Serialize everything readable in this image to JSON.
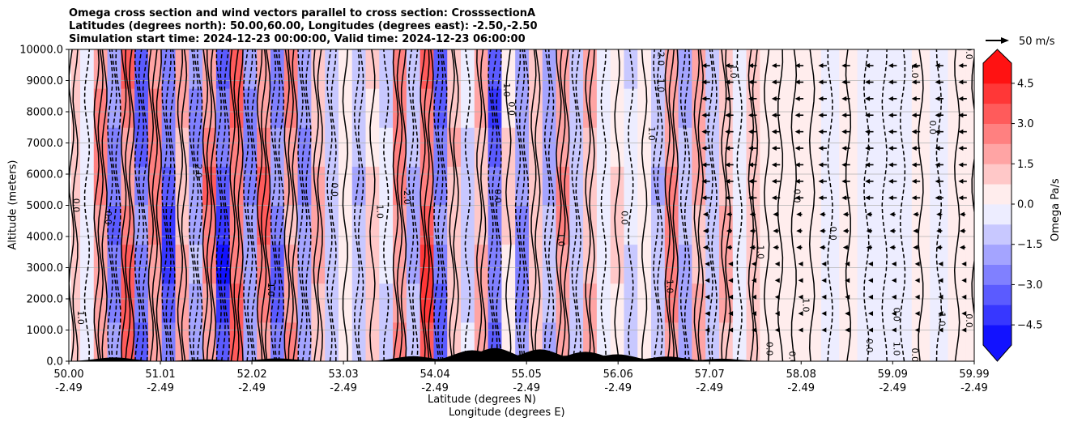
{
  "chart_data": {
    "type": "contour-cross-section",
    "title_lines": [
      "Omega cross section and wind vectors parallel to cross section: CrosssectionA",
      "Latitudes (degrees north): 50.00,60.00, Longitudes (degrees east): -2.50,-2.50",
      "Simulation start time: 2024-12-23 00:00:00, Valid time: 2024-12-23 06:00:00"
    ],
    "ylabel": "Altitude (meters)",
    "xlabel_lat": "Latitude (degrees N)",
    "xlabel_lon": "Longitude (degrees E)",
    "ylim": [
      0,
      10000
    ],
    "xlim": [
      50.0,
      59.99
    ],
    "y_ticks": [
      "0.0",
      "1000.0",
      "2000.0",
      "3000.0",
      "4000.0",
      "5000.0",
      "6000.0",
      "7000.0",
      "8000.0",
      "9000.0",
      "10000.0"
    ],
    "y_tick_values": [
      0,
      1000,
      2000,
      3000,
      4000,
      5000,
      6000,
      7000,
      8000,
      9000,
      10000
    ],
    "x_ticks_lat": [
      "50.00",
      "51.01",
      "52.02",
      "53.03",
      "54.04",
      "55.05",
      "56.06",
      "57.07",
      "58.08",
      "59.09",
      "59.99"
    ],
    "x_ticks_lon": [
      "-2.49",
      "-2.49",
      "-2.49",
      "-2.49",
      "-2.49",
      "-2.49",
      "-2.49",
      "-2.49",
      "-2.49",
      "-2.49",
      "-2.49"
    ],
    "x_tick_values": [
      50.0,
      51.01,
      52.02,
      53.03,
      54.04,
      55.05,
      56.06,
      57.07,
      58.08,
      59.09,
      59.99
    ],
    "colorbar": {
      "label": "Omega Pa/s",
      "range": [
        -5.25,
        5.25
      ],
      "tick_labels": [
        "4.5",
        "3.0",
        "1.5",
        "0.0",
        "−1.5",
        "−3.0",
        "−4.5"
      ],
      "tick_values": [
        4.5,
        3.0,
        1.5,
        0.0,
        -1.5,
        -3.0,
        -4.5
      ],
      "levels": [
        -5.25,
        -4.5,
        -3.75,
        -3.0,
        -2.25,
        -1.5,
        -0.75,
        0.0,
        0.75,
        1.5,
        2.25,
        3.0,
        3.75,
        4.5,
        5.25
      ],
      "cmap": "bwr",
      "extend": "both"
    },
    "quiver_key_label": "50 m/s",
    "quiver_key_value": 50,
    "omega_bands": [
      {
        "lat": 50.05,
        "omega": 1.2
      },
      {
        "lat": 50.2,
        "omega": -0.6
      },
      {
        "lat": 50.35,
        "omega": 2.4
      },
      {
        "lat": 50.5,
        "omega": -2.8
      },
      {
        "lat": 50.65,
        "omega": 3.2
      },
      {
        "lat": 50.8,
        "omega": -3.4
      },
      {
        "lat": 50.95,
        "omega": 2.6
      },
      {
        "lat": 51.1,
        "omega": -3.8
      },
      {
        "lat": 51.25,
        "omega": 1.8
      },
      {
        "lat": 51.4,
        "omega": -2.2
      },
      {
        "lat": 51.55,
        "omega": 2.8
      },
      {
        "lat": 51.7,
        "omega": -4.2
      },
      {
        "lat": 51.85,
        "omega": 3.4
      },
      {
        "lat": 52.0,
        "omega": -2.6
      },
      {
        "lat": 52.15,
        "omega": 3.0
      },
      {
        "lat": 52.3,
        "omega": -3.0
      },
      {
        "lat": 52.45,
        "omega": 2.2
      },
      {
        "lat": 52.6,
        "omega": -2.4
      },
      {
        "lat": 52.75,
        "omega": 1.6
      },
      {
        "lat": 52.9,
        "omega": -1.2
      },
      {
        "lat": 53.05,
        "omega": 0.6
      },
      {
        "lat": 53.2,
        "omega": -1.4
      },
      {
        "lat": 53.35,
        "omega": 1.0
      },
      {
        "lat": 53.5,
        "omega": -0.8
      },
      {
        "lat": 53.65,
        "omega": 2.6
      },
      {
        "lat": 53.8,
        "omega": -1.6
      },
      {
        "lat": 53.95,
        "omega": 3.6
      },
      {
        "lat": 54.1,
        "omega": -3.2
      },
      {
        "lat": 54.25,
        "omega": 1.4
      },
      {
        "lat": 54.4,
        "omega": -1.0
      },
      {
        "lat": 54.55,
        "omega": 1.8
      },
      {
        "lat": 54.7,
        "omega": -3.6
      },
      {
        "lat": 54.85,
        "omega": 0.8
      },
      {
        "lat": 55.0,
        "omega": -2.4
      },
      {
        "lat": 55.15,
        "omega": 1.2
      },
      {
        "lat": 55.3,
        "omega": -2.0
      },
      {
        "lat": 55.45,
        "omega": 2.4
      },
      {
        "lat": 55.6,
        "omega": -1.2
      },
      {
        "lat": 55.75,
        "omega": 1.6
      },
      {
        "lat": 55.9,
        "omega": -0.6
      },
      {
        "lat": 56.05,
        "omega": 0.9
      },
      {
        "lat": 56.2,
        "omega": -0.8
      },
      {
        "lat": 56.35,
        "omega": 0.4
      },
      {
        "lat": 56.5,
        "omega": -1.4
      },
      {
        "lat": 56.65,
        "omega": 2.6
      },
      {
        "lat": 56.8,
        "omega": -1.8
      },
      {
        "lat": 56.95,
        "omega": 2.0
      },
      {
        "lat": 57.1,
        "omega": -1.2
      },
      {
        "lat": 57.25,
        "omega": 1.6
      },
      {
        "lat": 57.4,
        "omega": -0.4
      },
      {
        "lat": 57.55,
        "omega": 1.2
      },
      {
        "lat": 57.7,
        "omega": 0.3
      },
      {
        "lat": 57.85,
        "omega": 0.1
      },
      {
        "lat": 58.0,
        "omega": 0.6
      },
      {
        "lat": 58.2,
        "omega": 0.2
      },
      {
        "lat": 58.4,
        "omega": -0.3
      },
      {
        "lat": 58.6,
        "omega": 0.1
      },
      {
        "lat": 58.8,
        "omega": -0.5
      },
      {
        "lat": 59.0,
        "omega": -0.2
      },
      {
        "lat": 59.2,
        "omega": -0.4
      },
      {
        "lat": 59.4,
        "omega": 0.2
      },
      {
        "lat": 59.6,
        "omega": -0.3
      },
      {
        "lat": 59.8,
        "omega": 0.3
      },
      {
        "lat": 59.99,
        "omega": 0.2
      }
    ],
    "contour_labels": [
      {
        "text": "0.0",
        "lat": 50.05,
        "alt": 5000
      },
      {
        "text": "1.0",
        "lat": 50.1,
        "alt": 1400
      },
      {
        "text": "0.0",
        "lat": 50.4,
        "alt": 4600
      },
      {
        "text": "2.0",
        "lat": 51.4,
        "alt": 6100
      },
      {
        "text": "1.0",
        "lat": 52.2,
        "alt": 2300
      },
      {
        "text": "0.0",
        "lat": 52.9,
        "alt": 5500
      },
      {
        "text": "1.0",
        "lat": 53.4,
        "alt": 4800
      },
      {
        "text": "-2.0",
        "lat": 53.7,
        "alt": 5300
      },
      {
        "text": "0.0",
        "lat": 54.7,
        "alt": 5300
      },
      {
        "text": "1.0",
        "lat": 54.8,
        "alt": 8700
      },
      {
        "text": "0.0",
        "lat": 54.85,
        "alt": 8100
      },
      {
        "text": "1.0",
        "lat": 55.4,
        "alt": 3900
      },
      {
        "text": "-1.0",
        "lat": 56.5,
        "alt": 8900
      },
      {
        "text": "2.0",
        "lat": 56.5,
        "alt": 9700
      },
      {
        "text": "1.0",
        "lat": 56.4,
        "alt": 7300
      },
      {
        "text": "0.0",
        "lat": 56.1,
        "alt": 4600
      },
      {
        "text": "1.0",
        "lat": 57.3,
        "alt": 9300
      },
      {
        "text": "0.0",
        "lat": 58.0,
        "alt": 5300
      },
      {
        "text": "1.0",
        "lat": 59.3,
        "alt": 9300
      },
      {
        "text": "0.0",
        "lat": 59.5,
        "alt": 7500
      },
      {
        "text": "0.0",
        "lat": 58.4,
        "alt": 4100
      },
      {
        "text": "1.0",
        "lat": 58.1,
        "alt": 1800
      },
      {
        "text": "0.0",
        "lat": 59.1,
        "alt": 1500
      },
      {
        "text": "-1.0",
        "lat": 59.6,
        "alt": 1400
      },
      {
        "text": "0.0",
        "lat": 59.9,
        "alt": 1300
      },
      {
        "text": "0.0",
        "lat": 58.8,
        "alt": 500
      },
      {
        "text": "1.0",
        "lat": 59.1,
        "alt": 400
      },
      {
        "text": "0.0",
        "lat": 59.3,
        "alt": 200
      },
      {
        "text": "0.0",
        "lat": 57.95,
        "alt": 100
      },
      {
        "text": "0.0",
        "lat": 57.7,
        "alt": 400
      },
      {
        "text": "1.0",
        "lat": 56.6,
        "alt": 2400
      },
      {
        "text": "1.0",
        "lat": 57.6,
        "alt": 3500
      },
      {
        "text": "0.0",
        "lat": 59.9,
        "alt": 9900
      }
    ],
    "wind_region_lat": [
      56.9,
      59.99
    ],
    "wind_u_ms": -18,
    "terrain_peaks": [
      {
        "lat": 50.5,
        "alt": 120
      },
      {
        "lat": 51.5,
        "alt": 60
      },
      {
        "lat": 52.3,
        "alt": 90
      },
      {
        "lat": 53.8,
        "alt": 160
      },
      {
        "lat": 54.45,
        "alt": 350
      },
      {
        "lat": 54.7,
        "alt": 420
      },
      {
        "lat": 55.2,
        "alt": 380
      },
      {
        "lat": 55.7,
        "alt": 300
      },
      {
        "lat": 56.05,
        "alt": 220
      },
      {
        "lat": 56.6,
        "alt": 150
      },
      {
        "lat": 57.2,
        "alt": 80
      }
    ]
  }
}
